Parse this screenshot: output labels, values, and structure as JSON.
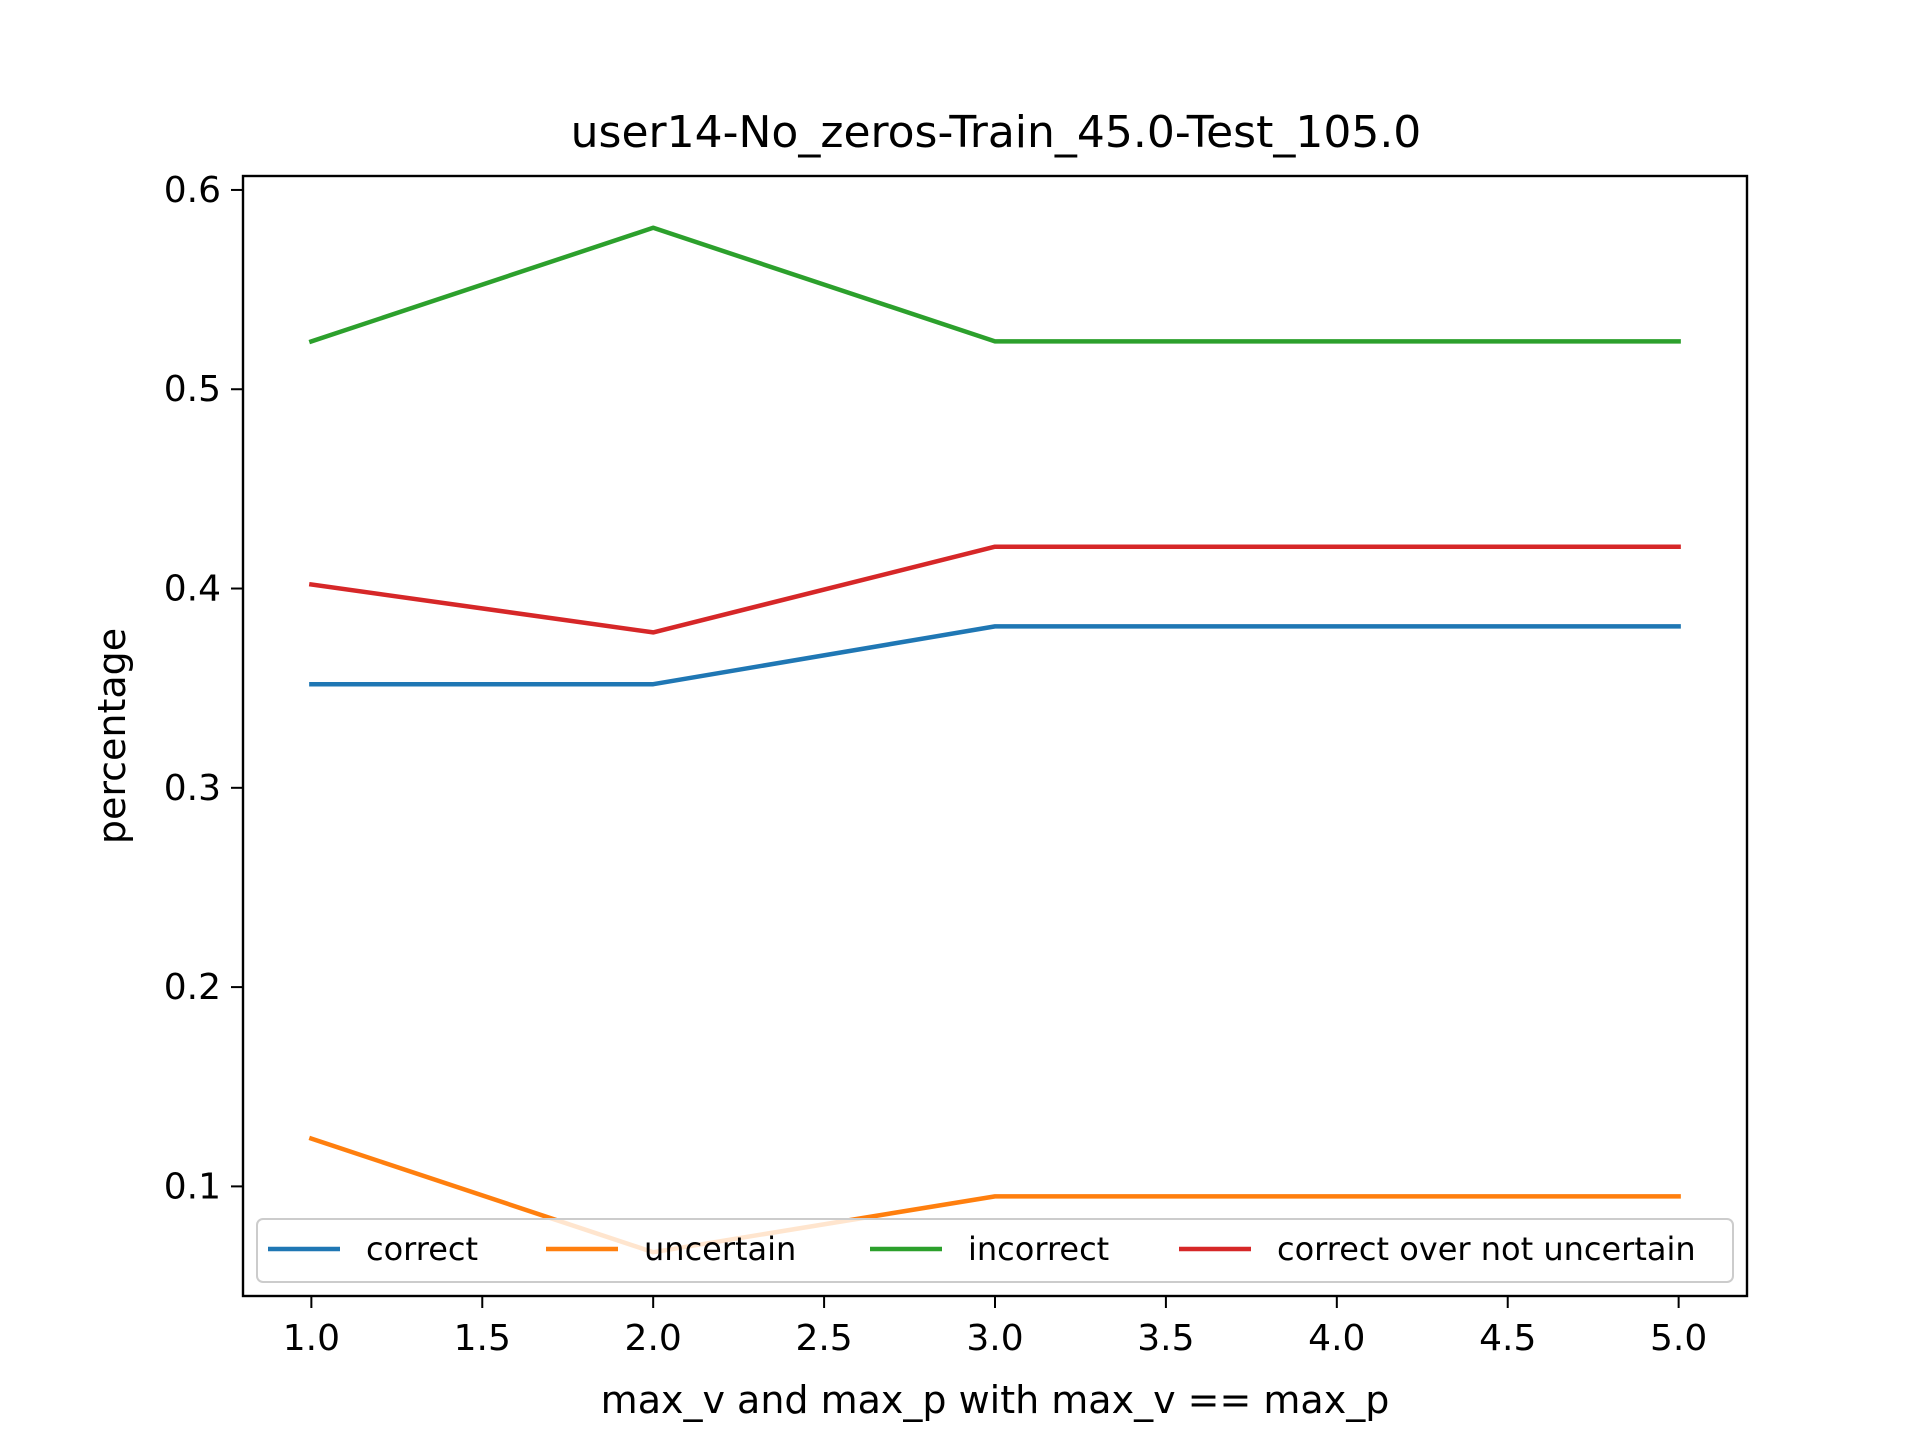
{
  "chart_data": {
    "type": "line",
    "title": "user14-No_zeros-Train_45.0-Test_105.0",
    "xlabel": "max_v and max_p with max_v == max_p",
    "ylabel": "percentage",
    "x": [
      1.0,
      2.0,
      3.0,
      4.0,
      5.0
    ],
    "xlim": [
      0.8,
      5.2
    ],
    "ylim": [
      0.045,
      0.607
    ],
    "xticks": [
      "1.0",
      "1.5",
      "2.0",
      "2.5",
      "3.0",
      "3.5",
      "4.0",
      "4.5",
      "5.0"
    ],
    "xtick_values": [
      1.0,
      1.5,
      2.0,
      2.5,
      3.0,
      3.5,
      4.0,
      4.5,
      5.0
    ],
    "yticks": [
      "0.1",
      "0.2",
      "0.3",
      "0.4",
      "0.5",
      "0.6"
    ],
    "ytick_values": [
      0.1,
      0.2,
      0.3,
      0.4,
      0.5,
      0.6
    ],
    "grid": false,
    "legend_position": "lower-center",
    "legend_columns": 4,
    "series": [
      {
        "name": "correct",
        "color": "#1f77b4",
        "values": [
          0.352,
          0.352,
          0.381,
          0.381,
          0.381
        ]
      },
      {
        "name": "uncertain",
        "color": "#ff7f0e",
        "values": [
          0.124,
          0.067,
          0.095,
          0.095,
          0.095
        ]
      },
      {
        "name": "incorrect",
        "color": "#2ca02c",
        "values": [
          0.524,
          0.581,
          0.524,
          0.524,
          0.524
        ]
      },
      {
        "name": "correct over not uncertain",
        "color": "#d62728",
        "values": [
          0.402,
          0.378,
          0.421,
          0.421,
          0.421
        ]
      }
    ]
  }
}
